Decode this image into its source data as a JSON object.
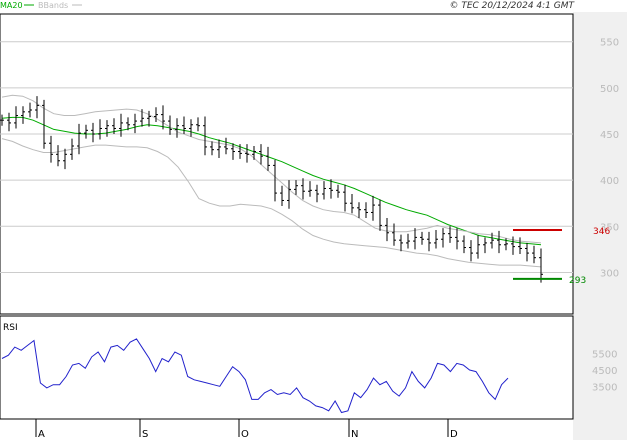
{
  "header": {
    "legend": [
      {
        "label": "MA20",
        "color": "#00aa00"
      },
      {
        "label": "BBands",
        "color": "#bbbbbb"
      }
    ],
    "copyright": "© TEC 20/12/2024 4:1 GMT"
  },
  "chart_data": [
    {
      "type": "ohlc",
      "y_ticks": [
        300,
        350,
        400,
        450,
        500,
        550
      ],
      "y_tick_labels": [
        "300",
        "350",
        "400",
        "450",
        "500",
        "550"
      ],
      "ylim": [
        255,
        580
      ],
      "x_month_labels": [
        "A",
        "S",
        "O",
        "N",
        "D"
      ],
      "month_start_index": [
        3,
        16,
        29,
        42,
        55
      ],
      "levels": [
        {
          "value": 346,
          "label": "346",
          "color": "#cc0000"
        },
        {
          "value": 293,
          "label": "293",
          "color": "#008800"
        }
      ],
      "close": [
        465,
        462,
        470,
        474,
        476,
        481,
        440,
        428,
        421,
        428,
        437,
        451,
        454,
        450,
        456,
        459,
        456,
        462,
        460,
        464,
        467,
        469,
        471,
        464,
        455,
        459,
        456,
        460,
        459,
        436,
        433,
        436,
        434,
        431,
        429,
        428,
        431,
        426,
        416,
        386,
        378,
        390,
        394,
        388,
        389,
        385,
        391,
        389,
        387,
        375,
        370,
        368,
        365,
        373,
        351,
        343,
        335,
        332,
        334,
        338,
        336,
        332,
        336,
        342,
        338,
        334,
        327,
        321,
        330,
        332,
        335,
        330,
        331,
        328,
        326,
        321,
        316,
        298
      ],
      "series": [
        {
          "name": "MA20",
          "color": "#00aa00",
          "values": [
            467,
            468,
            468,
            465,
            460,
            455,
            453,
            451,
            450,
            450,
            451,
            453,
            455,
            458,
            460,
            459,
            457,
            455,
            453,
            450,
            446,
            443,
            440,
            436,
            432,
            428,
            424,
            420,
            415,
            410,
            405,
            401,
            398,
            395,
            391,
            386,
            381,
            376,
            372,
            368,
            365,
            362,
            357,
            352,
            348,
            344,
            340,
            338,
            336,
            334,
            332,
            331,
            330
          ]
        },
        {
          "name": "BB-upper",
          "color": "#bbbbbb",
          "values": [
            490,
            492,
            491,
            486,
            478,
            472,
            470,
            470,
            472,
            474,
            475,
            476,
            477,
            476,
            472,
            466,
            459,
            452,
            448,
            444,
            442,
            440,
            438,
            434,
            427,
            417,
            407,
            397,
            387,
            378,
            372,
            368,
            366,
            365,
            362,
            355,
            348,
            345,
            344,
            344,
            346,
            348,
            351,
            348,
            346,
            344,
            342,
            341,
            339,
            336,
            334,
            333,
            332
          ]
        },
        {
          "name": "BB-lower",
          "color": "#bbbbbb",
          "values": [
            445,
            442,
            437,
            433,
            430,
            430,
            432,
            434,
            436,
            438,
            438,
            437,
            436,
            436,
            435,
            431,
            425,
            414,
            398,
            380,
            375,
            372,
            372,
            374,
            373,
            372,
            369,
            363,
            356,
            347,
            340,
            336,
            333,
            331,
            330,
            329,
            328,
            327,
            325,
            323,
            321,
            320,
            318,
            315,
            313,
            311,
            310,
            309,
            308,
            308,
            308,
            307,
            306
          ]
        }
      ]
    },
    {
      "type": "line",
      "title": "RSI",
      "y_tick_labels": [
        "5500",
        "4500",
        "3500"
      ],
      "y_ticks": [
        5500,
        4500,
        3500
      ],
      "ylim": [
        1500,
        7800
      ],
      "series": [
        {
          "name": "RSI",
          "color": "#2222cc",
          "values": [
            5200,
            5400,
            5900,
            5700,
            6000,
            6300,
            3700,
            3400,
            3600,
            3600,
            4100,
            4800,
            4900,
            4600,
            5300,
            5600,
            5000,
            5900,
            6000,
            5700,
            6200,
            6400,
            5800,
            5200,
            4400,
            5200,
            5000,
            5600,
            5400,
            4100,
            3900,
            3800,
            3700,
            3600,
            3500,
            4100,
            4700,
            4400,
            3900,
            2700,
            2700,
            3100,
            3300,
            3000,
            3100,
            3000,
            3400,
            2800,
            2600,
            2300,
            2200,
            2000,
            2600,
            1900,
            2000,
            3100,
            2800,
            3300,
            4000,
            3600,
            3800,
            3200,
            2900,
            3400,
            4400,
            3800,
            3400,
            4000,
            4900,
            4800,
            4400,
            4900,
            4800,
            4500,
            4400,
            3800,
            3100,
            2700,
            3600,
            4000
          ]
        }
      ]
    }
  ]
}
